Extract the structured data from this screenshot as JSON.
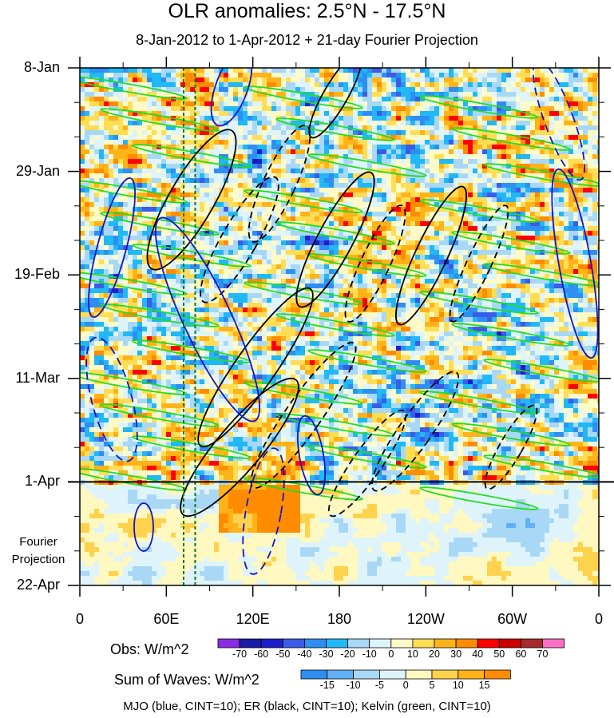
{
  "chart_data": {
    "type": "heatmap",
    "title": "OLR anomalies: 2.5°N - 17.5°N",
    "subtitle": "8-Jan-2012 to 1-Apr-2012 + 21-day Fourier Projection",
    "x_ticks": [
      "0",
      "60E",
      "120E",
      "180",
      "120W",
      "60W",
      "0"
    ],
    "x_range_deg_east": [
      0,
      360
    ],
    "y_ticks": [
      "8-Jan",
      "29-Jan",
      "19-Feb",
      "11-Mar",
      "1-Apr",
      "22-Apr"
    ],
    "y_range": [
      "2012-01-08",
      "2012-04-22"
    ],
    "forecast_start": "2012-04-01",
    "forecast_label": [
      "Fourier",
      "Projection"
    ],
    "reference_lines_lon": [
      72,
      80
    ],
    "obs_colorbar": {
      "label": "Obs: W/m^2",
      "levels": [
        "-70",
        "-60",
        "-50",
        "-40",
        "-30",
        "-20",
        "-10",
        "0",
        "10",
        "20",
        "30",
        "40",
        "50",
        "60",
        "70"
      ],
      "colors": [
        "#8a2be2",
        "#1a1aa6",
        "#1e1ecc",
        "#3a5ce6",
        "#2e8ef2",
        "#20b8f5",
        "#a8d8f5",
        "#dff4fa",
        "#fffbc8",
        "#ffdd55",
        "#ffb319",
        "#ff8c00",
        "#ff0000",
        "#cc0000",
        "#a52a2a",
        "#ff6fc8"
      ]
    },
    "waves_colorbar": {
      "label": "Sum of Waves: W/m^2",
      "levels": [
        "-15",
        "-10",
        "-5",
        "0",
        "5",
        "10",
        "15"
      ],
      "colors": [
        "#2e8ef2",
        "#62b0f5",
        "#a8d8f5",
        "#dff4fa",
        "#fff8c0",
        "#ffd24d",
        "#ffb319",
        "#ff8c00"
      ]
    },
    "contours": {
      "legend": "MJO (blue, CINT=10); ER (black, CINT=10); Kelvin (green, CINT=10)",
      "mjo_color": "#1414c8",
      "er_color": "#000000",
      "kelvin_color": "#22dd22"
    }
  }
}
